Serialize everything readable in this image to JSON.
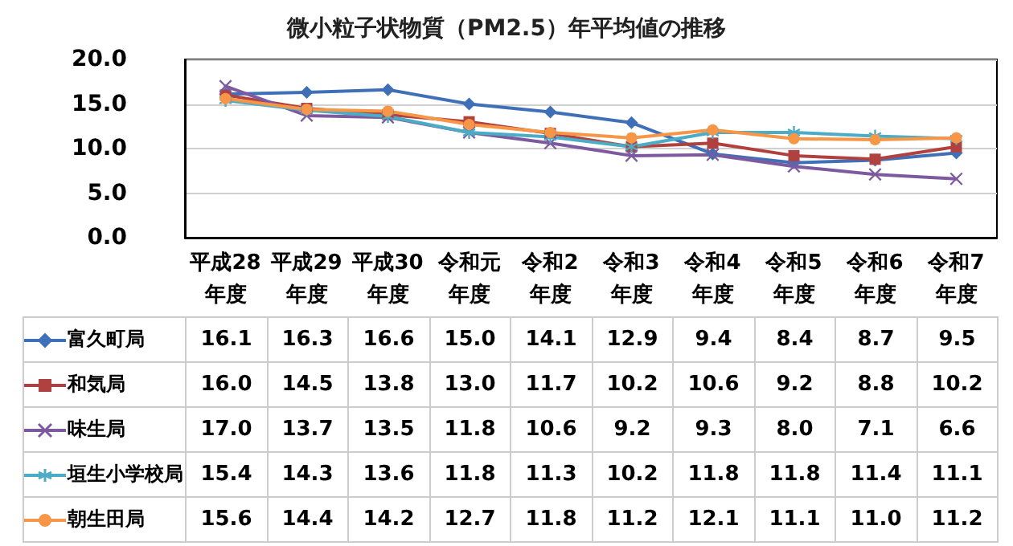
{
  "chart_data": {
    "type": "line",
    "title": "微小粒子状物質（PM2.5）年平均値の推移",
    "categories": [
      "平成28年度",
      "平成29年度",
      "平成30年度",
      "令和元年度",
      "令和2年度",
      "令和3年度",
      "令和4年度",
      "令和5年度",
      "令和6年度",
      "令和7年度"
    ],
    "series": [
      {
        "name": "富久町局",
        "color": "#3f6fb6",
        "marker": "diamond",
        "values": [
          16.1,
          16.3,
          16.6,
          15.0,
          14.1,
          12.9,
          9.4,
          8.4,
          8.7,
          9.5
        ],
        "value_labels": [
          "16.1",
          "16.3",
          "16.6",
          "15.0",
          "14.1",
          "12.9",
          "9.4",
          "8.4",
          "8.7",
          "9.5"
        ]
      },
      {
        "name": "和気局",
        "color": "#b0413e",
        "marker": "square",
        "values": [
          16.0,
          14.5,
          13.8,
          13.0,
          11.7,
          10.2,
          10.6,
          9.2,
          8.8,
          10.2
        ],
        "value_labels": [
          "16.0",
          "14.5",
          "13.8",
          "13.0",
          "11.7",
          "10.2",
          "10.6",
          "9.2",
          "8.8",
          "10.2"
        ]
      },
      {
        "name": "味生局",
        "color": "#7d5aa0",
        "marker": "cross",
        "values": [
          17.0,
          13.7,
          13.5,
          11.8,
          10.6,
          9.2,
          9.3,
          8.0,
          7.1,
          6.6
        ],
        "value_labels": [
          "17.0",
          "13.7",
          "13.5",
          "11.8",
          "10.6",
          "9.2",
          "9.3",
          "8.0",
          "7.1",
          "6.6"
        ]
      },
      {
        "name": "垣生小学校局",
        "color": "#4bacc6",
        "marker": "star",
        "values": [
          15.4,
          14.3,
          13.6,
          11.8,
          11.3,
          10.2,
          11.8,
          11.8,
          11.4,
          11.1
        ],
        "value_labels": [
          "15.4",
          "14.3",
          "13.6",
          "11.8",
          "11.3",
          "10.2",
          "11.8",
          "11.8",
          "11.4",
          "11.1"
        ]
      },
      {
        "name": "朝生田局",
        "color": "#f79646",
        "marker": "circle",
        "values": [
          15.6,
          14.4,
          14.2,
          12.7,
          11.8,
          11.2,
          12.1,
          11.1,
          11.0,
          11.2
        ],
        "value_labels": [
          "15.6",
          "14.4",
          "14.2",
          "12.7",
          "11.8",
          "11.2",
          "12.1",
          "11.1",
          "11.0",
          "11.2"
        ]
      }
    ],
    "ylim": [
      0,
      20
    ],
    "yticks": [
      {
        "value": 0,
        "label": "0.0"
      },
      {
        "value": 5,
        "label": "5.0"
      },
      {
        "value": 10,
        "label": "10.0"
      },
      {
        "value": 15,
        "label": "15.0"
      },
      {
        "value": 20,
        "label": "20.0"
      }
    ],
    "grid": "y",
    "legend": "bottom left",
    "line_style": "solid"
  }
}
